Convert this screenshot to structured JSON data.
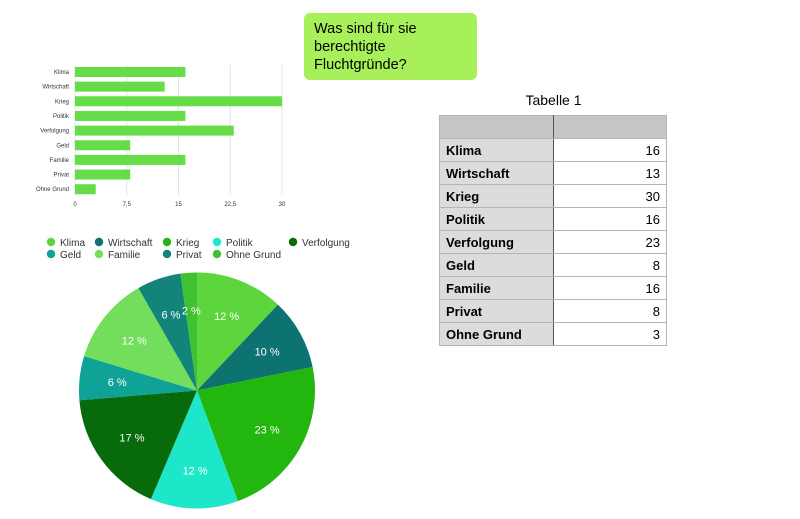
{
  "question": {
    "lines": [
      "Was sind für sie",
      "berechtigte",
      "Fluchtgründe?"
    ]
  },
  "table": {
    "title": "Tabelle 1",
    "rows": [
      {
        "label": "Klima",
        "value": "16"
      },
      {
        "label": "Wirtschaft",
        "value": "13"
      },
      {
        "label": "Krieg",
        "value": "30"
      },
      {
        "label": "Politik",
        "value": "16"
      },
      {
        "label": "Verfolgung",
        "value": "23"
      },
      {
        "label": "Geld",
        "value": "8"
      },
      {
        "label": "Familie",
        "value": "16"
      },
      {
        "label": "Privat",
        "value": "8"
      },
      {
        "label": "Ohne Grund",
        "value": "3"
      }
    ]
  },
  "chart_data": [
    {
      "type": "bar",
      "orientation": "horizontal",
      "categories": [
        "Klima",
        "Wirtschaft",
        "Krieg",
        "Politik",
        "Verfolgung",
        "Geld",
        "Familie",
        "Privat",
        "Ohne Grund"
      ],
      "values": [
        16,
        13,
        30,
        16,
        23,
        8,
        16,
        8,
        3
      ],
      "xlim": [
        0,
        30
      ],
      "xticks": [
        "0",
        "7,5",
        "15",
        "22,5",
        "30"
      ],
      "grid": true,
      "color": "#66dd47"
    },
    {
      "type": "pie",
      "legend_position": "top",
      "slices": [
        {
          "name": "Klima",
          "value": 16,
          "label": "12 %",
          "color": "#5cd63c"
        },
        {
          "name": "Wirtschaft",
          "value": 13,
          "label": "10 %",
          "color": "#0c7370"
        },
        {
          "name": "Krieg",
          "value": 30,
          "label": "23 %",
          "color": "#22b60f"
        },
        {
          "name": "Politik",
          "value": 16,
          "label": "12 %",
          "color": "#1ee6c8"
        },
        {
          "name": "Verfolgung",
          "value": 23,
          "label": "17 %",
          "color": "#086b0b"
        },
        {
          "name": "Geld",
          "value": 8,
          "label": "6 %",
          "color": "#0fa296"
        },
        {
          "name": "Familie",
          "value": 16,
          "label": "12 %",
          "color": "#73de5c"
        },
        {
          "name": "Privat",
          "value": 8,
          "label": "6 %",
          "color": "#138479"
        },
        {
          "name": "Ohne Grund",
          "value": 3,
          "label": "2 %",
          "color": "#3fc232"
        }
      ]
    }
  ]
}
